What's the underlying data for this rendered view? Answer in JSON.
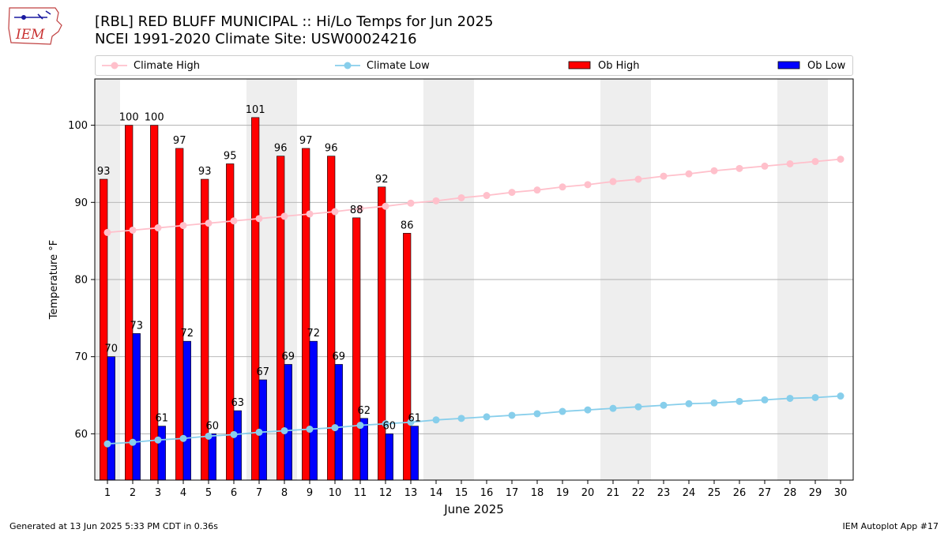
{
  "logo": {
    "text": "IEM",
    "icon": "iowa-state-outline-icon"
  },
  "title_line1": "[RBL] RED BLUFF MUNICIPAL :: Hi/Lo Temps for Jun 2025",
  "title_line2": "NCEI 1991-2020 Climate Site: USW00024216",
  "legend": [
    {
      "label": "Climate High",
      "kind": "line",
      "color": "#ffc0cb"
    },
    {
      "label": "Climate Low",
      "kind": "line",
      "color": "#87ceeb"
    },
    {
      "label": "Ob High",
      "kind": "bar",
      "color": "#ff0000"
    },
    {
      "label": "Ob Low",
      "kind": "bar",
      "color": "#0000ff"
    }
  ],
  "footer_left": "Generated at 13 Jun 2025 5:33 PM CDT in 0.36s",
  "footer_right": "IEM Autoplot App #17",
  "colors": {
    "ob_high": "#ff0000",
    "ob_low": "#0000ff",
    "climate_high": "#ffc0cb",
    "climate_low": "#87ceeb",
    "weekend_shade": "#eeeeee",
    "grid": "#b0b0b0"
  },
  "chart_data": {
    "type": "bar",
    "xlabel": "June 2025",
    "ylabel": "Temperature °F",
    "xlim": [
      0.5,
      30.5
    ],
    "ylim": [
      54,
      106
    ],
    "yticks": [
      60,
      70,
      80,
      90,
      100
    ],
    "grid": "horizontal",
    "legend_position": "top",
    "weekend_days": [
      1,
      7,
      8,
      14,
      15,
      21,
      22,
      28,
      29
    ],
    "days": [
      1,
      2,
      3,
      4,
      5,
      6,
      7,
      8,
      9,
      10,
      11,
      12,
      13,
      14,
      15,
      16,
      17,
      18,
      19,
      20,
      21,
      22,
      23,
      24,
      25,
      26,
      27,
      28,
      29,
      30
    ],
    "series": [
      {
        "name": "Ob High",
        "kind": "bar",
        "values": [
          93,
          100,
          100,
          97,
          93,
          95,
          101,
          96,
          97,
          96,
          88,
          92,
          86
        ]
      },
      {
        "name": "Ob Low",
        "kind": "bar",
        "values": [
          70,
          73,
          61,
          72,
          60,
          63,
          67,
          69,
          72,
          69,
          62,
          60,
          61
        ]
      },
      {
        "name": "Climate High",
        "kind": "line",
        "values": [
          86.1,
          86.4,
          86.7,
          87.0,
          87.3,
          87.6,
          87.9,
          88.2,
          88.5,
          88.8,
          89.2,
          89.5,
          89.9,
          90.2,
          90.6,
          90.9,
          91.3,
          91.6,
          92.0,
          92.3,
          92.7,
          93.0,
          93.4,
          93.7,
          94.1,
          94.4,
          94.7,
          95.0,
          95.3,
          95.6
        ]
      },
      {
        "name": "Climate Low",
        "kind": "line",
        "values": [
          58.7,
          58.9,
          59.2,
          59.4,
          59.7,
          59.9,
          60.2,
          60.4,
          60.6,
          60.8,
          61.1,
          61.3,
          61.5,
          61.8,
          62.0,
          62.2,
          62.4,
          62.6,
          62.9,
          63.1,
          63.3,
          63.5,
          63.7,
          63.9,
          64.0,
          64.2,
          64.4,
          64.6,
          64.7,
          64.9
        ]
      }
    ]
  }
}
